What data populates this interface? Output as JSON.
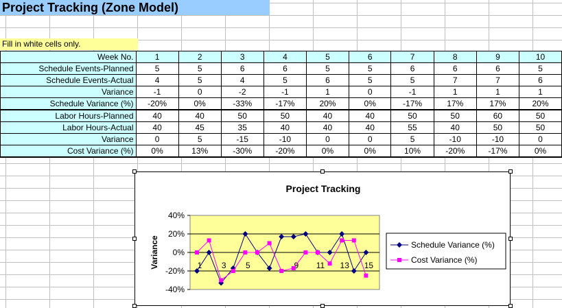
{
  "sheet": {
    "title": "Project Tracking (Zone Model)",
    "note": "Fill in white cells only.",
    "rows": [
      {
        "label": "Week No.",
        "values": [
          "1",
          "2",
          "3",
          "4",
          "5",
          "6",
          "7",
          "8",
          "9",
          "10"
        ],
        "header": true
      },
      {
        "label": "Schedule Events-Planned",
        "values": [
          "5",
          "5",
          "6",
          "6",
          "5",
          "5",
          "6",
          "6",
          "6",
          "5"
        ]
      },
      {
        "label": "Schedule Events-Actual",
        "values": [
          "4",
          "5",
          "4",
          "5",
          "6",
          "5",
          "5",
          "7",
          "7",
          "6"
        ]
      },
      {
        "label": "Variance",
        "values": [
          "-1",
          "0",
          "-2",
          "-1",
          "1",
          "0",
          "-1",
          "1",
          "1",
          "1"
        ]
      },
      {
        "label": "Schedule Variance (%)",
        "values": [
          "-20%",
          "0%",
          "-33%",
          "-17%",
          "20%",
          "0%",
          "-17%",
          "17%",
          "17%",
          "20%"
        ],
        "sep": true
      },
      {
        "label": "Labor Hours-Planned",
        "values": [
          "40",
          "40",
          "50",
          "50",
          "40",
          "40",
          "50",
          "50",
          "60",
          "50"
        ]
      },
      {
        "label": "Labor Hours-Actual",
        "values": [
          "40",
          "45",
          "35",
          "40",
          "40",
          "40",
          "55",
          "40",
          "50",
          "50"
        ]
      },
      {
        "label": "Variance",
        "values": [
          "0",
          "5",
          "-15",
          "-10",
          "0",
          "0",
          "5",
          "-10",
          "-10",
          "0"
        ]
      },
      {
        "label": "Cost Variance (%)",
        "values": [
          "0%",
          "13%",
          "-30%",
          "-20%",
          "0%",
          "0%",
          "10%",
          "-20%",
          "-17%",
          "0%"
        ],
        "sep": true
      }
    ]
  },
  "chart_data": {
    "type": "line",
    "title": "Project Tracking",
    "ylabel": "Variance",
    "xlabel": "",
    "x": [
      1,
      2,
      3,
      4,
      5,
      6,
      7,
      8,
      9,
      10,
      11,
      12,
      13,
      14,
      15,
      16
    ],
    "x_tick_labels": [
      "1",
      "3",
      "5",
      "9",
      "11",
      "13",
      "15"
    ],
    "y_tick_labels": [
      "40%",
      "20%",
      "0%",
      "-20%",
      "-40%"
    ],
    "ylim": [
      -40,
      40
    ],
    "plot_background": "#ffff99",
    "grid": true,
    "legend_position": "right",
    "series": [
      {
        "name": "Schedule Variance (%)",
        "color": "#000080",
        "marker": "diamond",
        "values": [
          -20,
          0,
          -33,
          -17,
          20,
          0,
          -17,
          17,
          17,
          20,
          0,
          0,
          20,
          -20,
          0,
          null
        ]
      },
      {
        "name": "Cost Variance (%)",
        "color": "#ff00ff",
        "marker": "square",
        "values": [
          0,
          13,
          -30,
          -20,
          0,
          0,
          10,
          -20,
          -17,
          0,
          0,
          -12,
          13,
          13,
          -25,
          null
        ]
      }
    ]
  }
}
